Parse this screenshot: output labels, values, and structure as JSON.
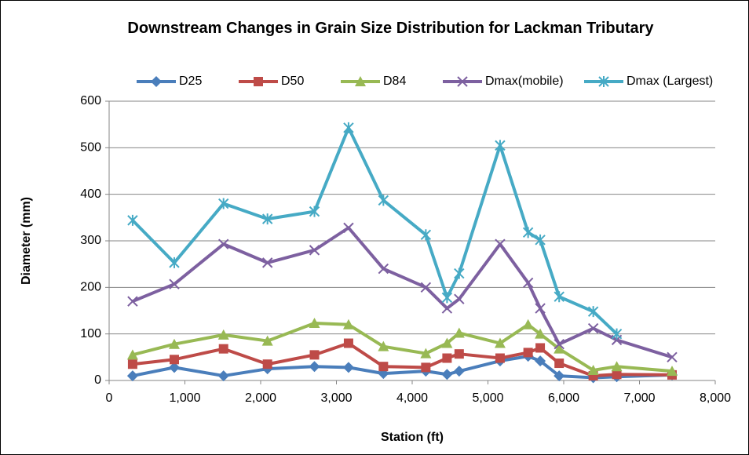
{
  "chart_data": {
    "type": "line",
    "title": "Downstream Changes in Grain Size Distribution for Lackman Tributary",
    "x_label": "Station (ft)",
    "y_label": "Diameter (mm)",
    "x": [
      310,
      860,
      1510,
      2090,
      2710,
      3160,
      3620,
      4180,
      4460,
      4620,
      5160,
      5530,
      5690,
      5940,
      6390,
      6700,
      7430
    ],
    "series": [
      {
        "name": "D25",
        "color": "#4a7ebb",
        "marker": "diamond",
        "values": [
          10,
          28,
          10,
          25,
          30,
          28,
          15,
          20,
          13,
          20,
          42,
          52,
          42,
          10,
          6,
          8,
          12
        ]
      },
      {
        "name": "D50",
        "color": "#be4b48",
        "marker": "square",
        "values": [
          35,
          45,
          68,
          35,
          55,
          80,
          30,
          28,
          48,
          57,
          48,
          60,
          70,
          37,
          10,
          13,
          12
        ]
      },
      {
        "name": "D84",
        "color": "#98b954",
        "marker": "triangle",
        "values": [
          55,
          78,
          98,
          85,
          123,
          120,
          73,
          58,
          80,
          102,
          80,
          120,
          100,
          68,
          22,
          30,
          20
        ]
      },
      {
        "name": "Dmax(mobile)",
        "color": "#7d60a0",
        "marker": "x",
        "values": [
          170,
          207,
          293,
          253,
          280,
          328,
          240,
          200,
          155,
          175,
          293,
          210,
          155,
          78,
          112,
          87,
          50
        ]
      },
      {
        "name": "Dmax (Largest)",
        "color": "#46aac5",
        "marker": "star",
        "values": [
          344,
          253,
          380,
          347,
          363,
          543,
          387,
          313,
          178,
          230,
          505,
          318,
          302,
          180,
          148,
          100,
          null
        ]
      }
    ],
    "xlim": [
      0,
      8000
    ],
    "xticks": [
      0,
      {
        "value": 1000,
        "label": "1,000"
      },
      {
        "value": 2000,
        "label": "2,000"
      },
      {
        "value": 3000,
        "label": "3,000"
      },
      {
        "value": 4000,
        "label": "4,000"
      },
      {
        "value": 5000,
        "label": "5,000"
      },
      {
        "value": 6000,
        "label": "6,000"
      },
      {
        "value": 7000,
        "label": "7,000"
      },
      {
        "value": 8000,
        "label": "8,000"
      }
    ],
    "ylim": [
      0,
      600
    ],
    "yticks": [
      0,
      100,
      200,
      300,
      400,
      500,
      600
    ],
    "grid": true,
    "legend": "top"
  }
}
